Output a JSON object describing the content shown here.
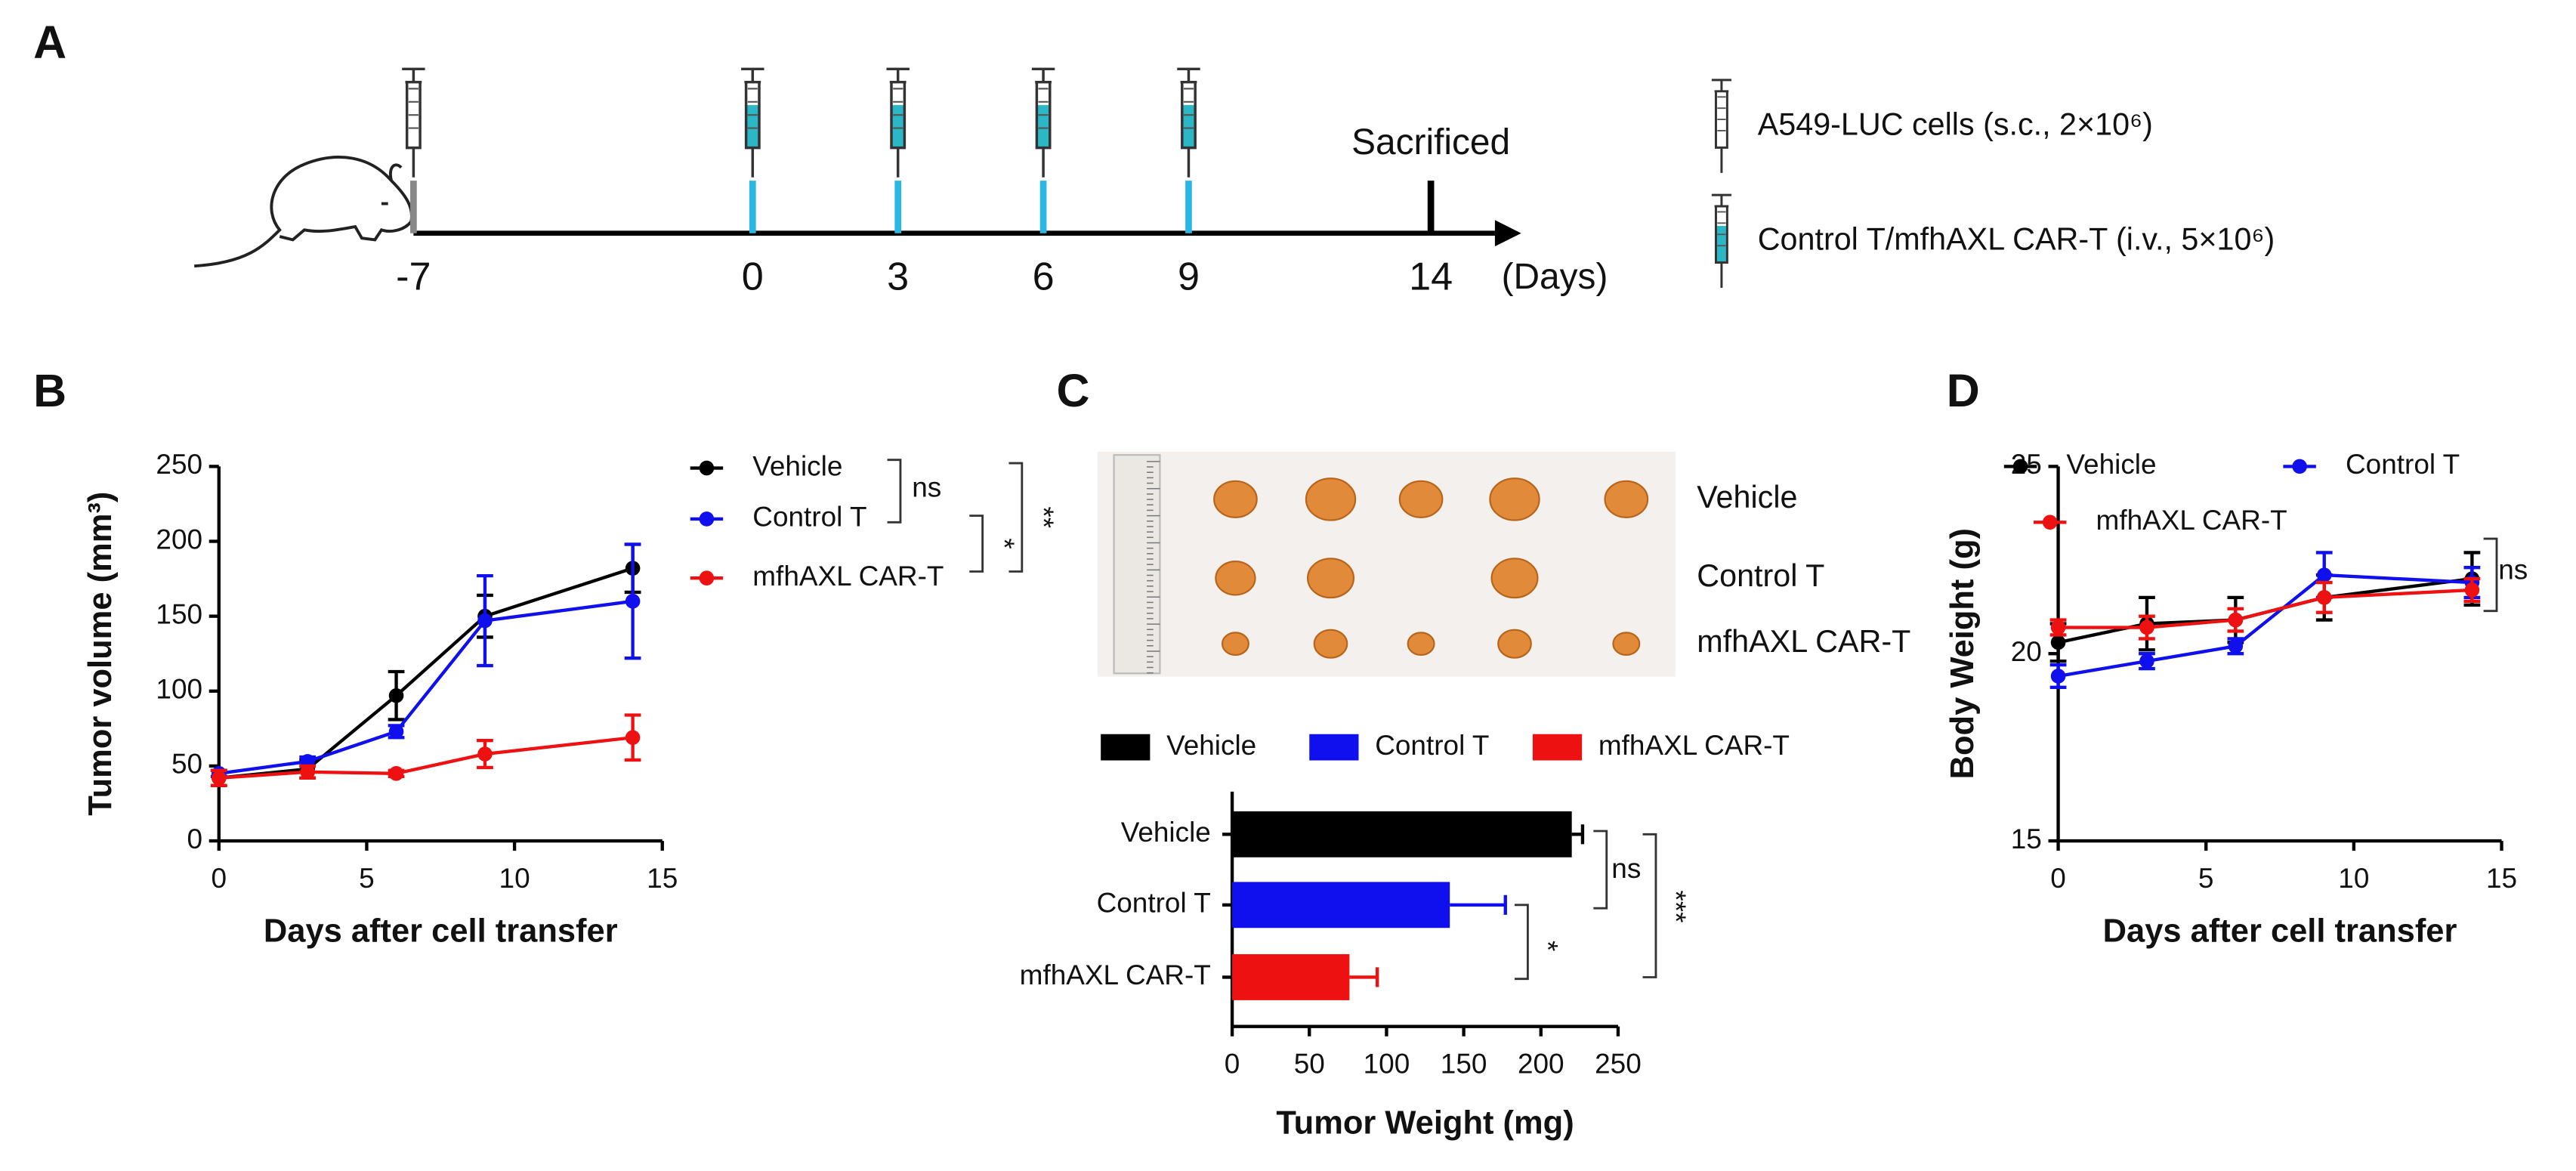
{
  "timeline": {
    "panel": "A",
    "days": [
      -7,
      0,
      3,
      6,
      9,
      14
    ],
    "unit": "(Days)",
    "event": "Sacrificed",
    "legend": [
      "A549-LUC cells (s.c., 2×10⁶)",
      "Control T/mfhAXL CAR-T (i.v., 5×10⁶)"
    ]
  },
  "chart_data": [
    {
      "type": "line",
      "panel": "B",
      "ylabel": "Tumor volume (mm³)",
      "xlabel": "Days after cell transfer",
      "x": [
        0,
        3,
        6,
        9,
        14
      ],
      "series": [
        {
          "name": "Vehicle",
          "color": "#000000",
          "values": [
            42,
            48,
            97,
            150,
            182
          ],
          "errors": [
            5,
            6,
            16,
            14,
            16
          ]
        },
        {
          "name": "Control T",
          "color": "#1010ee",
          "values": [
            45,
            53,
            73,
            147,
            160
          ],
          "errors": [
            2,
            3,
            4,
            30,
            38
          ]
        },
        {
          "name": "mfhAXL CAR-T",
          "color": "#ee1111",
          "values": [
            42,
            46,
            45,
            58,
            69
          ],
          "errors": [
            5,
            4,
            2,
            9,
            15
          ]
        }
      ],
      "xlim": [
        0,
        15
      ],
      "xticks": [
        0,
        5,
        10,
        15
      ],
      "ylim": [
        0,
        250
      ],
      "yticks": [
        0,
        50,
        100,
        150,
        200,
        250
      ],
      "annotations": [
        "ns",
        "*",
        "**"
      ]
    },
    {
      "type": "hbar",
      "panel": "C",
      "xlabel": "Tumor Weight (mg)",
      "categories": [
        "Vehicle",
        "Control T",
        "mfhAXL CAR-T"
      ],
      "values": [
        220,
        141,
        76
      ],
      "errors": [
        7,
        36,
        18
      ],
      "colors": [
        "#000000",
        "#1010ee",
        "#ee1111"
      ],
      "xlim": [
        0,
        250
      ],
      "xticks": [
        0,
        50,
        100,
        150,
        200,
        250
      ],
      "annotations": [
        "ns",
        "*",
        "***"
      ]
    },
    {
      "type": "line",
      "panel": "D",
      "ylabel": "Body Weight (g)",
      "xlabel": "Days after cell transfer",
      "x": [
        0,
        3,
        6,
        9,
        14
      ],
      "series": [
        {
          "name": "Vehicle",
          "color": "#000000",
          "values": [
            20.3,
            20.8,
            20.9,
            21.5,
            22.0
          ],
          "errors": [
            0.5,
            0.7,
            0.6,
            0.6,
            0.7
          ]
        },
        {
          "name": "Control T",
          "color": "#1010ee",
          "values": [
            19.4,
            19.8,
            20.2,
            22.1,
            21.9
          ],
          "errors": [
            0.3,
            0.2,
            0.2,
            0.6,
            0.4
          ]
        },
        {
          "name": "mfhAXL CAR-T",
          "color": "#ee1111",
          "values": [
            20.7,
            20.7,
            20.9,
            21.5,
            21.7
          ],
          "errors": [
            0.2,
            0.3,
            0.3,
            0.4,
            0.3
          ]
        }
      ],
      "xlim": [
        0,
        15
      ],
      "xticks": [
        0,
        5,
        10,
        15
      ],
      "ylim": [
        15,
        25
      ],
      "yticks": [
        15,
        20,
        25
      ],
      "annotations": [
        "ns"
      ]
    }
  ]
}
